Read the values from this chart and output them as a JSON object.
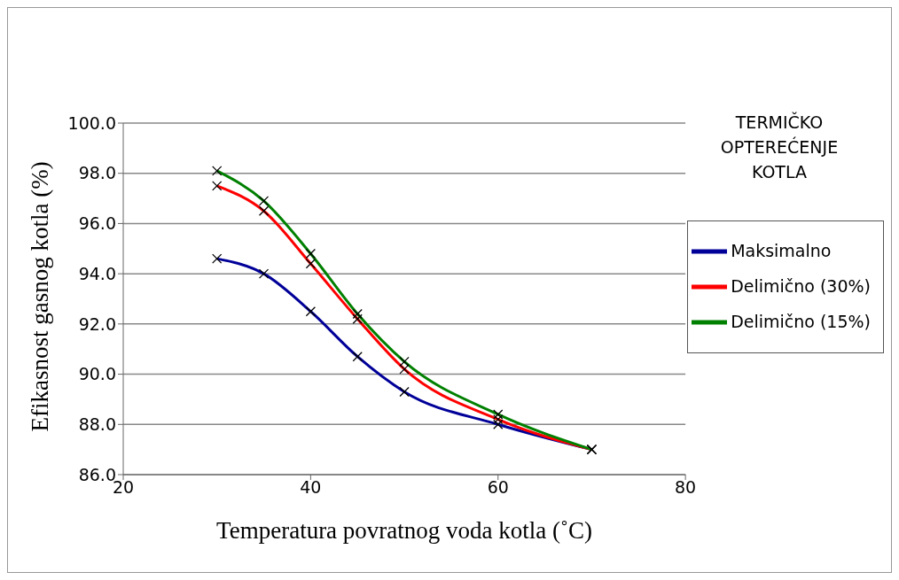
{
  "chart_data": {
    "type": "line",
    "xlabel": "Temperatura povratnog voda kotla (˚C)",
    "ylabel": "Efikasnost gasnog kotla (%)",
    "legend_title": "TERMIČKO OPTEREĆENJE KOTLA",
    "x": [
      30,
      35,
      40,
      45,
      50,
      60,
      70
    ],
    "series": [
      {
        "name": "Maksimalno",
        "color": "#000099",
        "values": [
          94.6,
          94.0,
          92.5,
          90.7,
          89.3,
          88.0,
          87.0
        ]
      },
      {
        "name": "Delimično (30%)",
        "color": "#ff0000",
        "values": [
          97.5,
          96.5,
          94.4,
          92.2,
          90.2,
          88.2,
          87.0
        ]
      },
      {
        "name": "Delimično (15%)",
        "color": "#008000",
        "values": [
          98.1,
          96.9,
          94.8,
          92.4,
          90.5,
          88.4,
          87.0
        ]
      }
    ],
    "xlim": [
      20,
      80
    ],
    "xticks": [
      20,
      40,
      60,
      80
    ],
    "ylim": [
      86,
      100
    ],
    "yticks": [
      {
        "value": 86,
        "label": "86.0"
      },
      {
        "value": 88,
        "label": "88.0"
      },
      {
        "value": 90,
        "label": "90.0"
      },
      {
        "value": 92,
        "label": "92.0"
      },
      {
        "value": 94,
        "label": "94.0"
      },
      {
        "value": 96,
        "label": "96.0"
      },
      {
        "value": 98,
        "label": "98.0"
      },
      {
        "value": 100,
        "label": "100.0"
      }
    ],
    "grid": "y",
    "legend": "right",
    "marker": "cross",
    "line_style": "solid"
  }
}
